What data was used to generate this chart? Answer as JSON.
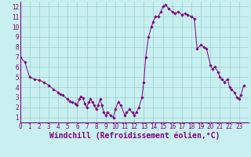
{
  "x": [
    0,
    0.5,
    1,
    1.5,
    2,
    2.5,
    3,
    3.5,
    4,
    4.2,
    4.5,
    5,
    5.2,
    5.5,
    5.8,
    6.0,
    6.2,
    6.4,
    6.6,
    6.8,
    7.0,
    7.2,
    7.4,
    7.6,
    7.8,
    8.0,
    8.2,
    8.4,
    8.6,
    8.8,
    9.0,
    9.2,
    9.5,
    9.8,
    10.0,
    10.3,
    10.6,
    11.0,
    11.2,
    11.5,
    11.8,
    12.0,
    12.2,
    12.5,
    12.8,
    13.0,
    13.2,
    13.5,
    13.8,
    14.0,
    14.2,
    14.5,
    14.8,
    15.0,
    15.3,
    15.6,
    16.0,
    16.3,
    16.6,
    17.0,
    17.3,
    17.6,
    18.0,
    18.3,
    18.6,
    19.0,
    19.3,
    19.6,
    20.0,
    20.2,
    20.5,
    20.8,
    21.0,
    21.2,
    21.5,
    21.8,
    22.0,
    22.2,
    22.5,
    22.8,
    23.0,
    23.2,
    23.5
  ],
  "y": [
    7.0,
    6.5,
    5.0,
    4.8,
    4.7,
    4.5,
    4.2,
    3.8,
    3.5,
    3.3,
    3.2,
    2.8,
    2.6,
    2.5,
    2.4,
    2.2,
    2.8,
    3.1,
    2.9,
    2.4,
    2.0,
    2.5,
    2.8,
    2.5,
    2.2,
    1.8,
    2.2,
    2.8,
    2.2,
    1.5,
    1.2,
    1.5,
    1.2,
    1.0,
    1.8,
    2.5,
    2.2,
    1.2,
    1.5,
    1.8,
    1.5,
    1.2,
    1.5,
    2.0,
    3.0,
    4.5,
    7.0,
    9.0,
    10.0,
    10.5,
    11.0,
    11.0,
    11.5,
    12.0,
    12.2,
    11.8,
    11.5,
    11.3,
    11.5,
    11.2,
    11.3,
    11.2,
    11.0,
    10.8,
    7.8,
    8.2,
    8.0,
    7.8,
    6.2,
    5.8,
    6.0,
    5.5,
    5.0,
    4.8,
    4.5,
    4.8,
    4.0,
    3.8,
    3.5,
    3.0,
    2.8,
    3.2,
    4.2
  ],
  "xlabel": "Windchill (Refroidissement éolien,°C)",
  "xlim": [
    0,
    24
  ],
  "ylim": [
    0.5,
    12.5
  ],
  "xticks": [
    0,
    1,
    2,
    3,
    4,
    5,
    6,
    7,
    8,
    9,
    10,
    11,
    12,
    13,
    14,
    15,
    16,
    17,
    18,
    19,
    20,
    21,
    22,
    23
  ],
  "yticks": [
    1,
    2,
    3,
    4,
    5,
    6,
    7,
    8,
    9,
    10,
    11,
    12
  ],
  "line_color": "#800080",
  "marker": "D",
  "marker_size": 1.8,
  "bg_color": "#c8f0f0",
  "grid_color": "#99cccc",
  "tick_label_fontsize": 5.5,
  "xlabel_fontsize": 7.0
}
